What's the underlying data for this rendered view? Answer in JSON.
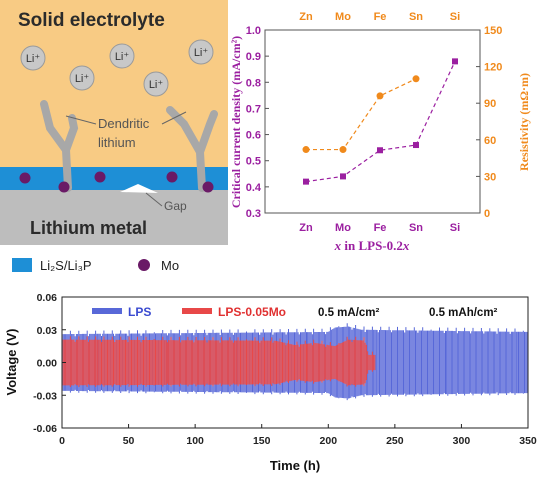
{
  "schematic": {
    "electrolyte_label": "Solid electrolyte",
    "ion_label": "Li⁺",
    "dendrite_label_line1": "Dendritic",
    "dendrite_label_line2": "lithium",
    "gap_label": "Gap",
    "metal_label": "Lithium metal",
    "legend_layer_label": "Li₂S/Li₃P",
    "legend_dot_label": "Mo",
    "colors": {
      "electrolyte": "#f8cb84",
      "layer": "#1e8fd6",
      "metal": "#bdbdbd",
      "ion": "#c8c8c8",
      "dendrite": "#a8a8a8",
      "mo_dot": "#6a1a66"
    }
  },
  "chart_data": [
    {
      "type": "line",
      "x_label_prefix": "x",
      "x_label_middle": " in LPS-0.2",
      "x_label_suffix": "x",
      "categories": [
        "Zn",
        "Mo",
        "Fe",
        "Sn",
        "Si"
      ],
      "series": [
        {
          "axis": "left",
          "color": "#9b1fa0",
          "marker": "square",
          "values": [
            0.42,
            0.44,
            0.54,
            0.56,
            0.88
          ]
        },
        {
          "axis": "right",
          "color": "#f08a1c",
          "marker": "circle",
          "values": [
            52,
            52,
            96,
            110,
            null
          ]
        }
      ],
      "ylabel": "Critical current density (mA/cm²)",
      "ylim": [
        0.3,
        1.0
      ],
      "yticks": [
        "0.3",
        "0.4",
        "0.5",
        "0.6",
        "0.7",
        "0.8",
        "0.9",
        "1.0"
      ],
      "y2label": "Resistivity (mΩ·m)",
      "y2lim": [
        0,
        150
      ],
      "y2ticks": [
        "0",
        "30",
        "60",
        "90",
        "120",
        "150"
      ],
      "colors": {
        "left": "#9b1fa0",
        "right": "#f08a1c"
      }
    },
    {
      "type": "line",
      "xlabel": "Time (h)",
      "ylabel": "Voltage (V)",
      "xlim": [
        0,
        350
      ],
      "ylim": [
        -0.06,
        0.06
      ],
      "xticks": [
        "0",
        "50",
        "100",
        "150",
        "200",
        "250",
        "300",
        "350"
      ],
      "yticks": [
        "-0.06",
        "-0.03",
        "0.00",
        "0.03",
        "0.06"
      ],
      "series": [
        {
          "name": "LPS",
          "color": "#5868d8",
          "x_range": [
            0,
            350
          ],
          "amplitude": 0.026,
          "envelope": [
            [
              0,
              0.026
            ],
            [
              200,
              0.028
            ],
            [
              205,
              0.032
            ],
            [
              215,
              0.033
            ],
            [
              225,
              0.03
            ],
            [
              350,
              0.028
            ]
          ]
        },
        {
          "name": "LPS-0.05Mo",
          "color": "#e84848",
          "x_range": [
            0,
            235
          ],
          "envelope": [
            [
              0,
              0.021
            ],
            [
              160,
              0.02
            ],
            [
              175,
              0.016
            ],
            [
              190,
              0.018
            ],
            [
              205,
              0.015
            ],
            [
              215,
              0.021
            ],
            [
              228,
              0.02
            ],
            [
              230,
              0.007
            ],
            [
              235,
              0.007
            ]
          ]
        }
      ],
      "annotations": [
        "0.5 mA/cm²",
        "0.5 mAh/cm²"
      ],
      "colors": {
        "frame": "#222222"
      }
    }
  ]
}
